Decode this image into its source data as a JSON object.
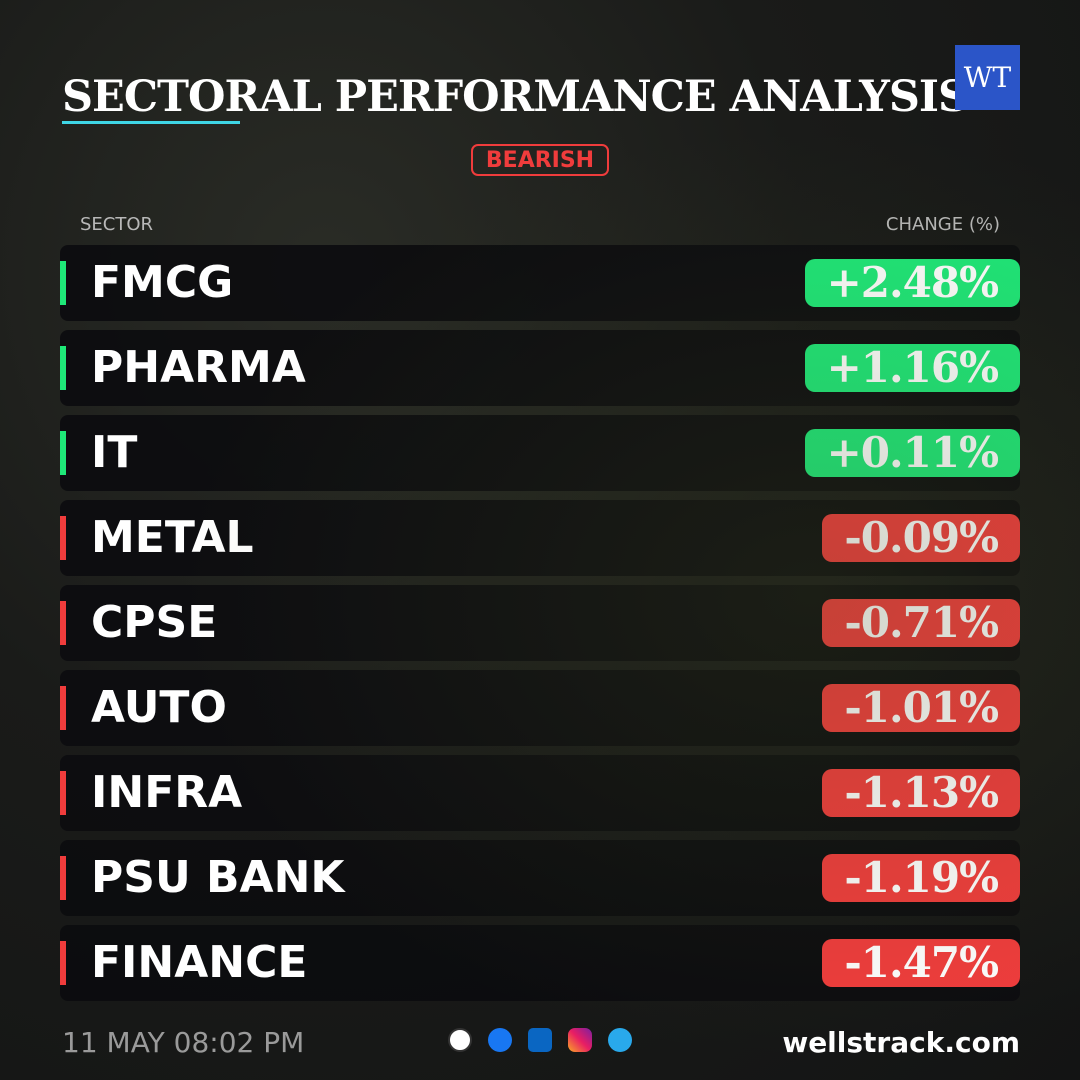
{
  "header": {
    "title": "SECTORAL PERFORMANCE ANALYSIS",
    "logo": "WT",
    "badge": "BEARISH"
  },
  "table": {
    "columns": [
      "SECTOR",
      "CHANGE (%)"
    ],
    "rows": [
      {
        "sector": "FMCG",
        "change": "+2.48%",
        "color": "#1ee878"
      },
      {
        "sector": "PHARMA",
        "change": "+1.16%",
        "color": "#1ee878"
      },
      {
        "sector": "IT",
        "change": "+0.11%",
        "color": "#1ee878"
      },
      {
        "sector": "METAL",
        "change": "-0.09%",
        "color": "#f03c3c"
      },
      {
        "sector": "CPSE",
        "change": "-0.71%",
        "color": "#f03c3c"
      },
      {
        "sector": "AUTO",
        "change": "-1.01%",
        "color": "#f03c3c"
      },
      {
        "sector": "INFRA",
        "change": "-1.13%",
        "color": "#f03c3c"
      },
      {
        "sector": "PSU BANK",
        "change": "-1.19%",
        "color": "#f03c3c"
      },
      {
        "sector": "FINANCE",
        "change": "-1.47%",
        "color": "#f03c3c"
      }
    ]
  },
  "footer": {
    "timestamp": "11 MAY 08:02 PM",
    "site": "wellstrack.com"
  }
}
